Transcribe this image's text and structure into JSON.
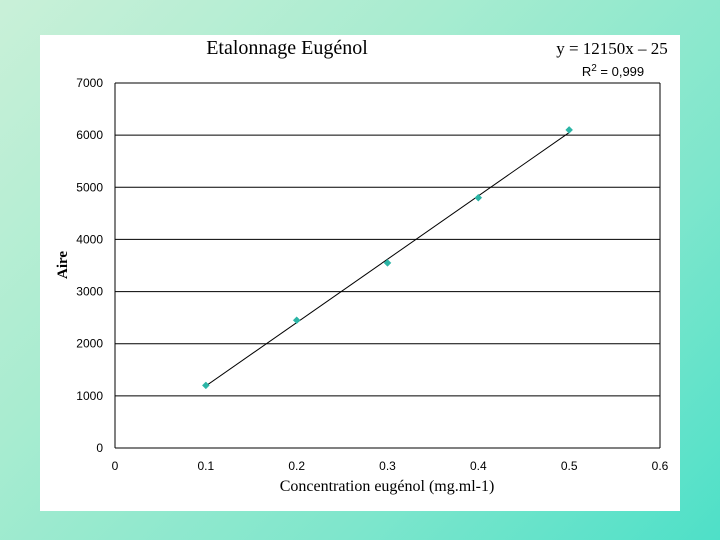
{
  "chart_data": {
    "type": "scatter",
    "title": "Etalonnage Eugénol",
    "xlabel": "Concentration eugénol (mg.ml-1)",
    "ylabel": "Aire",
    "xlim": [
      0,
      0.6
    ],
    "ylim": [
      0,
      7000
    ],
    "xticks": [
      "0",
      "0.1",
      "0.2",
      "0.3",
      "0.4",
      "0.5",
      "0.6"
    ],
    "yticks": [
      "0",
      "1000",
      "2000",
      "3000",
      "4000",
      "5000",
      "6000",
      "7000"
    ],
    "grid": true,
    "series": [
      {
        "x": [
          0.1,
          0.2,
          0.3,
          0.4,
          0.5
        ],
        "y": [
          1200,
          2450,
          3550,
          4800,
          6100
        ]
      }
    ],
    "trendline": {
      "equation": "y = 12150x – 25",
      "r2": "R2 = 0,999",
      "slope": 12150,
      "intercept": -25,
      "x_range": [
        0.1,
        0.5
      ]
    },
    "colors": {
      "marker": "#2bb5a6",
      "line": "#000000",
      "grid": "#000000"
    }
  }
}
